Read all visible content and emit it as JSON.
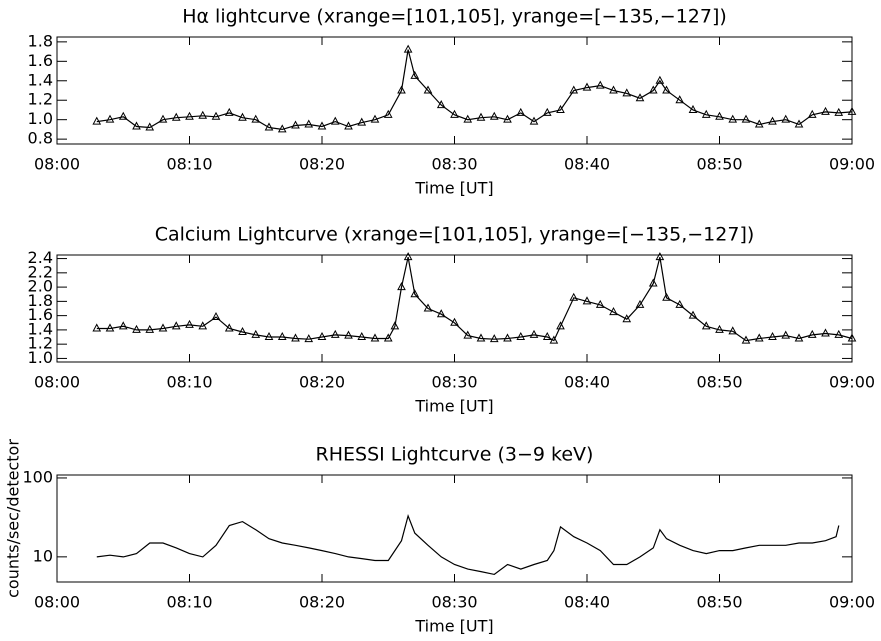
{
  "chart_data": [
    {
      "type": "line",
      "title": "Hα lightcurve (xrange=[101,105], yrange=[−135,−127])",
      "x_label": "Time [UT]",
      "marker": "triangle",
      "color": "#000000",
      "x": [
        3,
        4,
        5,
        6,
        7,
        8,
        9,
        10,
        11,
        12,
        13,
        14,
        15,
        16,
        17,
        18,
        19,
        20,
        21,
        22,
        23,
        24,
        25,
        26,
        26.5,
        27,
        28,
        29,
        30,
        31,
        32,
        33,
        34,
        35,
        36,
        37,
        38,
        39,
        40,
        41,
        42,
        43,
        44,
        45,
        45.5,
        46,
        47,
        48,
        49,
        50,
        51,
        52,
        53,
        54,
        55,
        56,
        57,
        58,
        59,
        60
      ],
      "values": [
        0.98,
        1.0,
        1.03,
        0.93,
        0.92,
        1.0,
        1.02,
        1.03,
        1.04,
        1.03,
        1.07,
        1.02,
        1.0,
        0.92,
        0.9,
        0.94,
        0.95,
        0.93,
        0.98,
        0.93,
        0.97,
        1.0,
        1.05,
        1.3,
        1.72,
        1.45,
        1.3,
        1.15,
        1.05,
        1.0,
        1.02,
        1.03,
        1.0,
        1.07,
        0.98,
        1.07,
        1.1,
        1.3,
        1.33,
        1.35,
        1.3,
        1.27,
        1.22,
        1.3,
        1.4,
        1.3,
        1.2,
        1.1,
        1.05,
        1.03,
        1.0,
        1.0,
        0.95,
        0.98,
        1.0,
        0.95,
        1.05,
        1.08,
        1.07,
        1.08
      ],
      "xlim": [
        0,
        60
      ],
      "xticks": [
        {
          "value": 0,
          "label": "08:00"
        },
        {
          "value": 10,
          "label": "08:10"
        },
        {
          "value": 20,
          "label": "08:20"
        },
        {
          "value": 30,
          "label": "08:30"
        },
        {
          "value": 40,
          "label": "08:40"
        },
        {
          "value": 50,
          "label": "08:50"
        },
        {
          "value": 60,
          "label": "09:00"
        }
      ],
      "ylim": [
        0.75,
        1.85
      ],
      "yticks": [
        0.8,
        {
          "value": 1,
          "label": "1.0"
        },
        1.2,
        1.4,
        1.6,
        1.8
      ],
      "log_scale": false
    },
    {
      "type": "line",
      "title": "Calcium Lightcurve (xrange=[101,105], yrange=[−135,−127])",
      "x_label": "Time [UT]",
      "marker": "triangle",
      "color": "#000000",
      "x": [
        3,
        4,
        5,
        6,
        7,
        8,
        9,
        10,
        11,
        12,
        13,
        14,
        15,
        16,
        17,
        18,
        19,
        20,
        21,
        22,
        23,
        24,
        25,
        25.5,
        26,
        26.5,
        27,
        28,
        29,
        30,
        31,
        32,
        33,
        34,
        35,
        36,
        37,
        37.5,
        38,
        39,
        40,
        41,
        42,
        43,
        44,
        45,
        45.5,
        46,
        47,
        48,
        49,
        50,
        51,
        52,
        53,
        54,
        55,
        56,
        57,
        58,
        59,
        60
      ],
      "values": [
        1.42,
        1.42,
        1.45,
        1.4,
        1.4,
        1.42,
        1.45,
        1.47,
        1.45,
        1.58,
        1.42,
        1.37,
        1.33,
        1.3,
        1.3,
        1.28,
        1.27,
        1.3,
        1.33,
        1.32,
        1.3,
        1.28,
        1.28,
        1.45,
        2.0,
        2.42,
        1.9,
        1.7,
        1.62,
        1.5,
        1.32,
        1.28,
        1.27,
        1.28,
        1.3,
        1.33,
        1.3,
        1.25,
        1.45,
        1.85,
        1.8,
        1.75,
        1.65,
        1.55,
        1.75,
        2.05,
        2.42,
        1.85,
        1.75,
        1.6,
        1.45,
        1.4,
        1.38,
        1.25,
        1.28,
        1.3,
        1.32,
        1.28,
        1.33,
        1.35,
        1.33,
        1.28
      ],
      "xlim": [
        0,
        60
      ],
      "xticks": [
        {
          "value": 0,
          "label": "08:00"
        },
        {
          "value": 10,
          "label": "08:10"
        },
        {
          "value": 20,
          "label": "08:20"
        },
        {
          "value": 30,
          "label": "08:30"
        },
        {
          "value": 40,
          "label": "08:40"
        },
        {
          "value": 50,
          "label": "08:50"
        },
        {
          "value": 60,
          "label": "09:00"
        }
      ],
      "ylim": [
        0.95,
        2.45
      ],
      "yticks": [
        {
          "value": 1,
          "label": "1.0"
        },
        1.2,
        1.4,
        1.6,
        1.8,
        {
          "value": 2,
          "label": "2.0"
        },
        2.2,
        2.4
      ],
      "log_scale": false
    },
    {
      "type": "line",
      "title": "RHESSI Lightcurve (3−9 keV)",
      "x_label": "Time [UT]",
      "y_label": "counts/sec/detector",
      "marker": "none",
      "color": "#000000",
      "x": [
        3,
        4,
        5,
        6,
        7,
        8,
        9,
        10,
        11,
        12,
        13,
        14,
        15,
        16,
        17,
        18,
        19,
        20,
        21,
        22,
        23,
        24,
        25,
        26,
        26.5,
        27,
        28,
        29,
        30,
        31,
        32,
        33,
        34,
        35,
        36,
        37,
        37.5,
        38,
        39,
        40,
        41,
        42,
        43,
        44,
        45,
        45.5,
        46,
        47,
        48,
        49,
        50,
        51,
        52,
        53,
        54,
        55,
        56,
        57,
        58,
        58.8,
        59
      ],
      "values": [
        10,
        10.5,
        10,
        11,
        15,
        15,
        13,
        11,
        10,
        14,
        25,
        28,
        22,
        17,
        15,
        14,
        13,
        12,
        11,
        10,
        9.5,
        9,
        9,
        16,
        33,
        20,
        14,
        10,
        8,
        7,
        6.5,
        6,
        8,
        7,
        8,
        9,
        12,
        24,
        18,
        15,
        12,
        8,
        8,
        10,
        13,
        22,
        17,
        14,
        12,
        11,
        12,
        12,
        13,
        14,
        14,
        14,
        15,
        15,
        16,
        18,
        25
      ],
      "xlim": [
        0,
        60
      ],
      "xticks": [
        {
          "value": 0,
          "label": "08:00"
        },
        {
          "value": 10,
          "label": "08:10"
        },
        {
          "value": 20,
          "label": "08:20"
        },
        {
          "value": 30,
          "label": "08:30"
        },
        {
          "value": 40,
          "label": "08:40"
        },
        {
          "value": 50,
          "label": "08:50"
        },
        {
          "value": 60,
          "label": "09:00"
        }
      ],
      "ylim": [
        4.8,
        109
      ],
      "yticks": [
        10,
        100
      ],
      "log_scale": true
    }
  ]
}
